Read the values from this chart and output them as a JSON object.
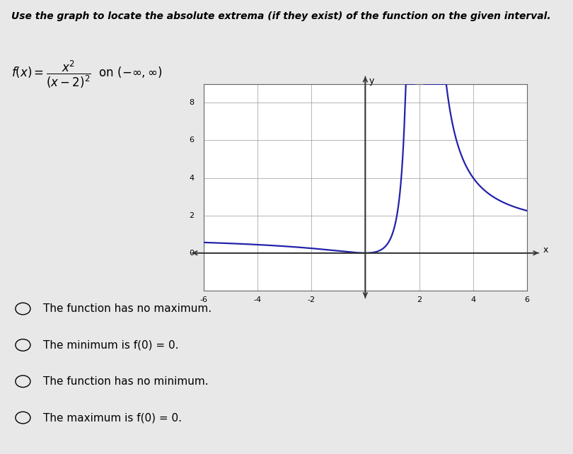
{
  "title": "Use the graph to locate the absolute extrema (if they exist) of the function on the given interval.",
  "xlim": [
    -6,
    6
  ],
  "ylim": [
    -2,
    9
  ],
  "xticks": [
    -6,
    -4,
    -2,
    0,
    2,
    4,
    6
  ],
  "yticks": [
    0,
    2,
    4,
    6,
    8
  ],
  "xtick_labels": [
    "-6",
    "-4",
    "-2",
    "",
    "2",
    "4",
    "6"
  ],
  "ytick_labels": [
    "0",
    "2",
    "4",
    "6",
    "8"
  ],
  "curve_color": "#2222aa",
  "curve_linewidth": 1.6,
  "background_color": "#e8e8e8",
  "plot_bg_color": "#ffffff",
  "choices": [
    "The function has no maximum.",
    "The minimum is f(0) = 0.",
    "The function has no minimum.",
    "The maximum is f(0) = 0."
  ],
  "choice_fontsize": 11,
  "grid_color": "#999999",
  "axis_color": "#333333",
  "spine_color": "#666666",
  "tick_fontsize": 8
}
